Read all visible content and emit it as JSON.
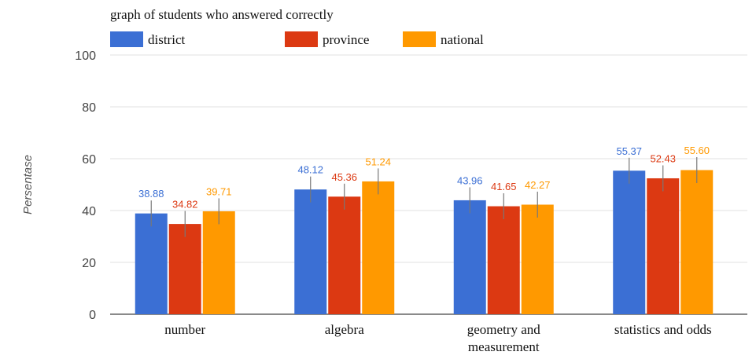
{
  "chart_data": {
    "type": "bar",
    "title": "graph of students who answered correctly",
    "ylabel": "Persentase",
    "xlabel": "",
    "ylim": [
      0,
      100
    ],
    "yticks": [
      0,
      20,
      40,
      60,
      80,
      100
    ],
    "grid": true,
    "legend_position": "top-left",
    "categories": [
      [
        "number"
      ],
      [
        "algebra"
      ],
      [
        "geometry and",
        "measurement"
      ],
      [
        "statistics and odds"
      ]
    ],
    "series": [
      {
        "name": "district",
        "color": "#3b6fd4",
        "values": [
          38.88,
          48.12,
          43.96,
          55.37
        ],
        "labels": [
          "38.88",
          "48.12",
          "43.96",
          "55.37"
        ]
      },
      {
        "name": "province",
        "color": "#dc3912",
        "values": [
          34.82,
          45.36,
          41.65,
          52.43
        ],
        "labels": [
          "34.82",
          "45.36",
          "41.65",
          "52.43"
        ]
      },
      {
        "name": "national",
        "color": "#ff9900",
        "values": [
          39.71,
          51.24,
          42.27,
          55.6
        ],
        "labels": [
          "39.71",
          "51.24",
          "42.27",
          "55.60"
        ]
      }
    ],
    "error_margin": 5
  }
}
